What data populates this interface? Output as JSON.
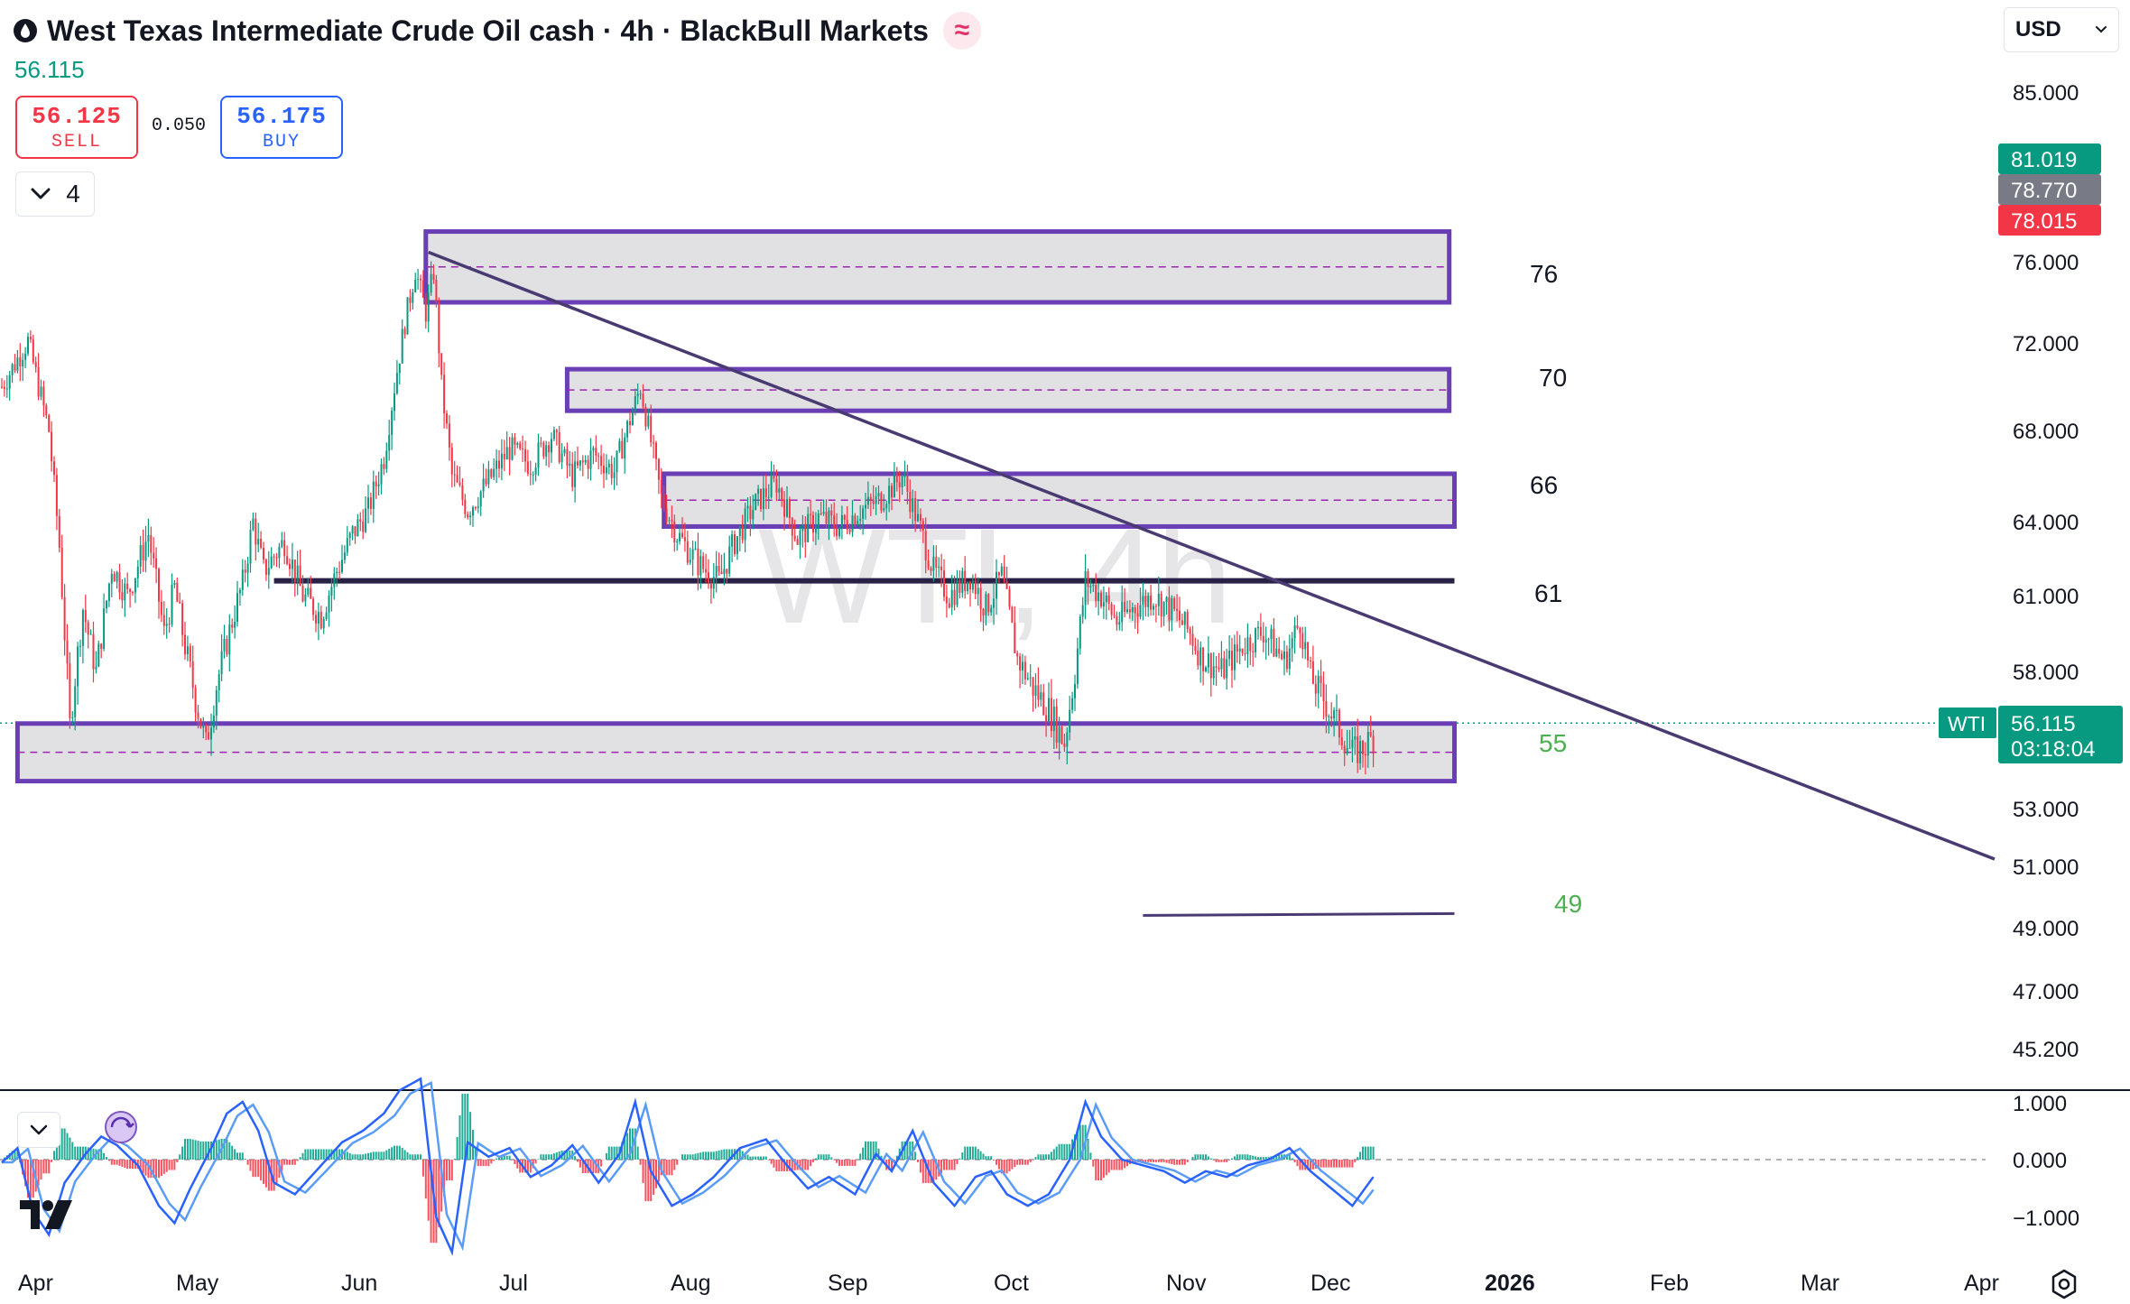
{
  "header": {
    "title": "West Texas Intermediate Crude Oil cash · 4h · BlackBull Markets",
    "last_price": "56.115",
    "badge_symbol": "≈"
  },
  "trade": {
    "sell_price": "56.125",
    "sell_label": "SELL",
    "spread": "0.050",
    "buy_price": "56.175",
    "buy_label": "BUY"
  },
  "indicators_toggle": {
    "count": "4"
  },
  "currency": {
    "label": "USD"
  },
  "watermark": "WTI, 4h",
  "price_axis": {
    "ticks": [
      "85.000",
      "76.000",
      "72.000",
      "68.000",
      "64.000",
      "61.000",
      "58.000",
      "53.000",
      "51.000",
      "49.000",
      "47.000",
      "45.200"
    ]
  },
  "price_labels": [
    {
      "value": "81.019",
      "color": "#089981"
    },
    {
      "value": "78.770",
      "color": "#787b86"
    },
    {
      "value": "78.015",
      "color": "#f23645"
    }
  ],
  "current_price": {
    "symbol": "WTI",
    "value": "56.115",
    "countdown": "03:18:04",
    "color": "#089981"
  },
  "osc_axis": {
    "ticks": [
      "1.000",
      "0.000",
      "−1.000"
    ]
  },
  "time_axis": {
    "labels": [
      {
        "text": "Apr",
        "bold": false
      },
      {
        "text": "May",
        "bold": false
      },
      {
        "text": "Jun",
        "bold": false
      },
      {
        "text": "Jul",
        "bold": false
      },
      {
        "text": "Aug",
        "bold": false
      },
      {
        "text": "Sep",
        "bold": false
      },
      {
        "text": "Oct",
        "bold": false
      },
      {
        "text": "Nov",
        "bold": false
      },
      {
        "text": "Dec",
        "bold": false
      },
      {
        "text": "2026",
        "bold": true
      },
      {
        "text": "Feb",
        "bold": false
      },
      {
        "text": "Mar",
        "bold": false
      },
      {
        "text": "Apr",
        "bold": false
      }
    ]
  },
  "levels": [
    {
      "label": "76",
      "color": "#131722"
    },
    {
      "label": "70",
      "color": "#131722"
    },
    {
      "label": "66",
      "color": "#131722"
    },
    {
      "label": "61",
      "color": "#131722"
    },
    {
      "label": "55",
      "color": "#4caf50"
    },
    {
      "label": "49",
      "color": "#4caf50"
    }
  ],
  "chart_data": {
    "type": "candlestick",
    "symbol": "WTI",
    "timeframe": "4h",
    "price_closes": [
      [
        0,
        70.0
      ],
      [
        10,
        72.1
      ],
      [
        18,
        68.0
      ],
      [
        22,
        63.0
      ],
      [
        26,
        56.0
      ],
      [
        31,
        60.5
      ],
      [
        36,
        58.0
      ],
      [
        42,
        62.2
      ],
      [
        48,
        61.0
      ],
      [
        56,
        63.5
      ],
      [
        62,
        59.5
      ],
      [
        66,
        61.3
      ],
      [
        70,
        59.0
      ],
      [
        74,
        57.0
      ],
      [
        78,
        55.3
      ],
      [
        82,
        57.5
      ],
      [
        88,
        60.0
      ],
      [
        92,
        61.5
      ],
      [
        96,
        64.0
      ],
      [
        100,
        62.0
      ],
      [
        108,
        63.2
      ],
      [
        115,
        61.0
      ],
      [
        122,
        60.2
      ],
      [
        128,
        62.0
      ],
      [
        134,
        63.5
      ],
      [
        140,
        64.5
      ],
      [
        146,
        66.8
      ],
      [
        150,
        70.0
      ],
      [
        154,
        73.0
      ],
      [
        158,
        75.6
      ],
      [
        162,
        73.5
      ],
      [
        165,
        75.5
      ],
      [
        168,
        70.0
      ],
      [
        172,
        66.0
      ],
      [
        178,
        64.5
      ],
      [
        186,
        65.8
      ],
      [
        194,
        67.2
      ],
      [
        202,
        66.5
      ],
      [
        210,
        67.8
      ],
      [
        218,
        66.0
      ],
      [
        226,
        67.0
      ],
      [
        234,
        66.2
      ],
      [
        240,
        68.5
      ],
      [
        244,
        70.0
      ],
      [
        248,
        67.5
      ],
      [
        252,
        65.0
      ],
      [
        258,
        63.5
      ],
      [
        266,
        62.3
      ],
      [
        274,
        61.6
      ],
      [
        280,
        63.2
      ],
      [
        288,
        64.8
      ],
      [
        296,
        65.7
      ],
      [
        304,
        63.3
      ],
      [
        312,
        64.2
      ],
      [
        320,
        63.8
      ],
      [
        328,
        64.5
      ],
      [
        336,
        65.0
      ],
      [
        344,
        66.0
      ],
      [
        350,
        64.0
      ],
      [
        356,
        62.0
      ],
      [
        362,
        61.0
      ],
      [
        370,
        61.8
      ],
      [
        376,
        60.5
      ],
      [
        382,
        61.8
      ],
      [
        388,
        58.5
      ],
      [
        394,
        57.4
      ],
      [
        400,
        56.6
      ],
      [
        406,
        55.4
      ],
      [
        410,
        58.0
      ],
      [
        414,
        61.6
      ],
      [
        420,
        61.0
      ],
      [
        426,
        60.0
      ],
      [
        432,
        60.5
      ],
      [
        440,
        61.0
      ],
      [
        448,
        60.3
      ],
      [
        454,
        59.5
      ],
      [
        458,
        58.6
      ],
      [
        466,
        58.0
      ],
      [
        474,
        59.0
      ],
      [
        482,
        59.6
      ],
      [
        490,
        58.4
      ],
      [
        496,
        60.0
      ],
      [
        500,
        57.8
      ],
      [
        506,
        56.8
      ],
      [
        512,
        55.7
      ],
      [
        516,
        55.0
      ],
      [
        520,
        55.2
      ],
      [
        524,
        55.6
      ]
    ],
    "osc_values": [
      [
        0,
        -0.05
      ],
      [
        6,
        0.2
      ],
      [
        12,
        -0.9
      ],
      [
        18,
        -1.3
      ],
      [
        24,
        -0.4
      ],
      [
        32,
        0.1
      ],
      [
        38,
        0.4
      ],
      [
        44,
        0.25
      ],
      [
        52,
        -0.1
      ],
      [
        60,
        -0.8
      ],
      [
        66,
        -1.1
      ],
      [
        72,
        -0.5
      ],
      [
        80,
        0.2
      ],
      [
        86,
        0.8
      ],
      [
        92,
        1.0
      ],
      [
        98,
        0.5
      ],
      [
        104,
        -0.4
      ],
      [
        112,
        -0.6
      ],
      [
        120,
        -0.2
      ],
      [
        130,
        0.3
      ],
      [
        138,
        0.5
      ],
      [
        146,
        0.8
      ],
      [
        152,
        1.2
      ],
      [
        160,
        1.4
      ],
      [
        166,
        -1.0
      ],
      [
        172,
        -1.6
      ],
      [
        178,
        0.3
      ],
      [
        186,
        0.05
      ],
      [
        194,
        0.2
      ],
      [
        202,
        -0.3
      ],
      [
        210,
        -0.1
      ],
      [
        218,
        0.25
      ],
      [
        228,
        -0.4
      ],
      [
        236,
        0.1
      ],
      [
        242,
        1.0
      ],
      [
        248,
        -0.2
      ],
      [
        256,
        -0.8
      ],
      [
        264,
        -0.6
      ],
      [
        272,
        -0.3
      ],
      [
        282,
        0.2
      ],
      [
        292,
        0.35
      ],
      [
        300,
        -0.1
      ],
      [
        308,
        -0.5
      ],
      [
        316,
        -0.3
      ],
      [
        326,
        -0.6
      ],
      [
        334,
        0.1
      ],
      [
        340,
        -0.2
      ],
      [
        348,
        0.5
      ],
      [
        356,
        -0.4
      ],
      [
        364,
        -0.8
      ],
      [
        372,
        -0.3
      ],
      [
        378,
        -0.2
      ],
      [
        384,
        -0.6
      ],
      [
        392,
        -0.8
      ],
      [
        400,
        -0.6
      ],
      [
        408,
        0.0
      ],
      [
        414,
        1.0
      ],
      [
        420,
        0.4
      ],
      [
        428,
        0.0
      ],
      [
        436,
        -0.1
      ],
      [
        444,
        -0.2
      ],
      [
        452,
        -0.4
      ],
      [
        460,
        -0.2
      ],
      [
        468,
        -0.3
      ],
      [
        476,
        -0.1
      ],
      [
        484,
        0.0
      ],
      [
        492,
        0.2
      ],
      [
        500,
        -0.2
      ],
      [
        508,
        -0.5
      ],
      [
        516,
        -0.8
      ],
      [
        524,
        -0.3
      ]
    ],
    "zones": [
      {
        "name": "76",
        "low": 74.0,
        "high": 77.6,
        "x_start": 162,
        "x_end": 553
      },
      {
        "name": "70",
        "low": 68.9,
        "high": 70.8,
        "x_start": 216,
        "x_end": 553
      },
      {
        "name": "66",
        "low": 63.8,
        "high": 66.1,
        "x_start": 253,
        "x_end": 555
      },
      {
        "name": "55",
        "low": 54.0,
        "high": 56.1,
        "x_start": 6,
        "x_end": 555
      }
    ],
    "horizontal_lines": [
      {
        "name": "61",
        "price": 61.6,
        "x_start": 104,
        "x_end": 555
      },
      {
        "name": "49",
        "price": 49.4,
        "x_start": 436,
        "x_end": 555
      }
    ],
    "trendline": {
      "p1": [
        163,
        76.5
      ],
      "p2": [
        735,
        51.5
      ]
    },
    "y_axis_ticks": [
      85,
      76,
      72,
      68,
      64,
      61,
      58,
      53,
      51,
      49,
      47,
      45.2
    ],
    "osc_ticks": [
      1,
      0,
      -1
    ]
  }
}
